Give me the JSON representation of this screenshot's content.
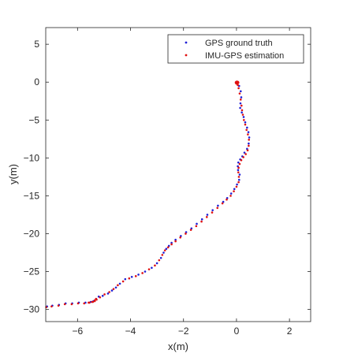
{
  "chart_data": {
    "type": "scatter",
    "title": "",
    "xlabel": "x(m)",
    "ylabel": "y(m)",
    "xlim": [
      -7.2,
      2.8
    ],
    "ylim": [
      -31.6,
      7.2
    ],
    "xticks": [
      -6,
      -4,
      -2,
      0,
      2
    ],
    "yticks": [
      5,
      0,
      -5,
      -10,
      -15,
      -20,
      -25,
      -30
    ],
    "grid": false,
    "legend_position": "top-right",
    "series": [
      {
        "name": "GPS ground truth",
        "color": "#1f1fd6",
        "marker": "dot",
        "x": [
          0.02,
          0.1,
          0.16,
          0.18,
          0.15,
          0.14,
          0.2,
          0.27,
          0.33,
          0.4,
          0.45,
          0.48,
          0.46,
          0.4,
          0.3,
          0.22,
          0.14,
          0.07,
          0.05,
          0.06,
          0.12,
          0.1,
          0.02,
          -0.08,
          -0.2,
          -0.35,
          -0.5,
          -0.7,
          -0.9,
          -1.1,
          -1.3,
          -1.5,
          -1.7,
          -1.9,
          -2.1,
          -2.3,
          -2.45,
          -2.55,
          -2.65,
          -2.75,
          -2.85,
          -3.0,
          -3.2,
          -3.45,
          -3.7,
          -3.95,
          -4.2,
          -4.4,
          -4.55,
          -4.7,
          -4.85,
          -5.05,
          -5.2,
          -5.3,
          -5.4,
          -5.5,
          -5.7,
          -5.95,
          -6.2,
          -6.45,
          -6.7,
          -6.95,
          -7.15
        ],
        "y": [
          0.0,
          -0.5,
          -1.2,
          -2.0,
          -2.8,
          -3.4,
          -4.0,
          -4.6,
          -5.3,
          -6.0,
          -6.6,
          -7.3,
          -8.1,
          -8.8,
          -9.3,
          -9.8,
          -10.2,
          -10.6,
          -11.1,
          -11.6,
          -12.2,
          -12.9,
          -13.5,
          -14.1,
          -14.7,
          -15.3,
          -15.8,
          -16.3,
          -16.9,
          -17.5,
          -18.1,
          -18.7,
          -19.3,
          -19.8,
          -20.3,
          -20.8,
          -21.2,
          -21.6,
          -22.0,
          -22.5,
          -23.2,
          -23.9,
          -24.5,
          -25.0,
          -25.4,
          -25.7,
          -26.0,
          -26.6,
          -27.1,
          -27.5,
          -27.9,
          -28.2,
          -28.3,
          -28.6,
          -28.9,
          -29.0,
          -29.1,
          -29.1,
          -29.2,
          -29.2,
          -29.4,
          -29.5,
          -29.6
        ]
      },
      {
        "name": "IMU-GPS estimation",
        "color": "#e01010",
        "marker": "dot",
        "x": [
          0.0,
          0.05,
          0.08,
          0.12,
          0.16,
          0.19,
          0.21,
          0.24,
          0.28,
          0.33,
          0.38,
          0.43,
          0.47,
          0.46,
          0.42,
          0.35,
          0.26,
          0.18,
          0.12,
          0.08,
          0.07,
          0.09,
          0.08,
          0.0,
          -0.1,
          -0.22,
          -0.37,
          -0.53,
          -0.72,
          -0.92,
          -1.12,
          -1.32,
          -1.52,
          -1.72,
          -1.92,
          -2.12,
          -2.3,
          -2.45,
          -2.58,
          -2.7,
          -2.8,
          -2.92,
          -3.08,
          -3.3,
          -3.55,
          -3.8,
          -4.05,
          -4.28,
          -4.48,
          -4.64,
          -4.8,
          -4.98,
          -5.15,
          -5.28,
          -5.35,
          -5.42,
          -5.55,
          -5.75,
          -5.98,
          -6.22,
          -6.48,
          -6.72,
          -6.98,
          -7.18,
          -5.3,
          -5.35,
          -5.45,
          -5.58
        ],
        "y": [
          -0.2,
          -0.4,
          -0.8,
          -1.5,
          -2.3,
          -3.1,
          -3.7,
          -4.3,
          -5.0,
          -5.6,
          -6.3,
          -6.9,
          -7.6,
          -8.4,
          -9.0,
          -9.5,
          -9.9,
          -10.3,
          -10.8,
          -11.3,
          -11.9,
          -12.5,
          -13.2,
          -13.8,
          -14.4,
          -15.0,
          -15.5,
          -16.0,
          -16.6,
          -17.2,
          -17.8,
          -18.4,
          -19.0,
          -19.5,
          -20.0,
          -20.5,
          -21.0,
          -21.4,
          -21.8,
          -22.2,
          -22.8,
          -23.5,
          -24.2,
          -24.7,
          -25.2,
          -25.6,
          -25.9,
          -26.3,
          -26.8,
          -27.3,
          -27.7,
          -28.0,
          -28.4,
          -28.7,
          -28.9,
          -29.0,
          -29.1,
          -29.2,
          -29.2,
          -29.3,
          -29.3,
          -29.5,
          -29.6,
          -29.7,
          -28.6,
          -28.8,
          -29.0,
          -29.1
        ]
      }
    ],
    "start_cluster": {
      "x": 0.02,
      "y": -0.05
    }
  }
}
